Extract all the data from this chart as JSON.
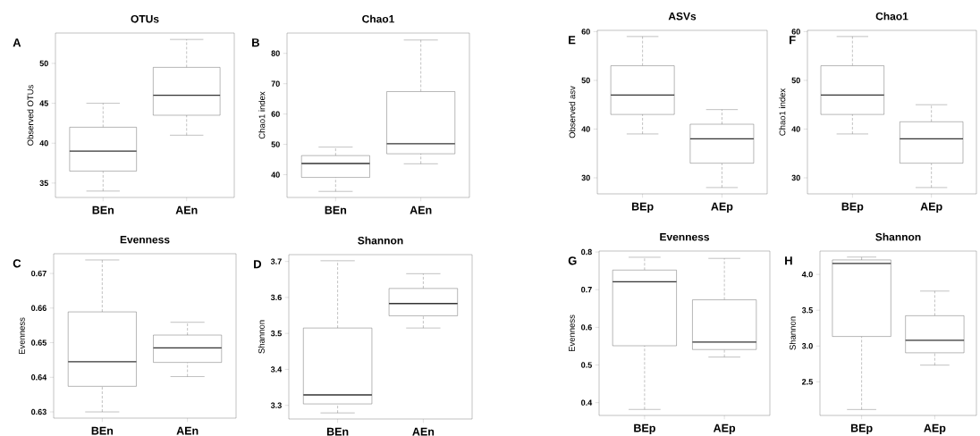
{
  "chart_data": [
    {
      "type": "box",
      "title": "OTUs",
      "ylabel": "Observed OTUs",
      "annotations": [
        "A"
      ],
      "categories": [
        "BEn",
        "AEn"
      ],
      "ylim": [
        33.2,
        53.8
      ],
      "yticks": [
        35,
        40,
        45,
        50
      ],
      "boxes": [
        {
          "low": 34,
          "q1": 36.5,
          "median": 39,
          "q3": 42,
          "high": 45
        },
        {
          "low": 41,
          "q1": 43.5,
          "median": 46,
          "q3": 49.5,
          "high": 53
        }
      ]
    },
    {
      "type": "box",
      "title": "Chao1",
      "ylabel": "Chao1 index",
      "annotations": [
        "B"
      ],
      "categories": [
        "BEn",
        "AEn"
      ],
      "ylim": [
        32.5,
        86.7
      ],
      "yticks": [
        40,
        50,
        60,
        70,
        80
      ],
      "boxes": [
        {
          "low": 34.5,
          "q1": 39.1,
          "median": 43.7,
          "q3": 46.3,
          "high": 49.1
        },
        {
          "low": 43.6,
          "q1": 46.9,
          "median": 50.2,
          "q3": 67.4,
          "high": 84.4
        }
      ]
    },
    {
      "type": "box",
      "title": "Evenness",
      "ylabel": "Evenness",
      "annotations": [
        "C"
      ],
      "categories": [
        "BEn",
        "AEn"
      ],
      "ylim": [
        0.6282,
        0.6757
      ],
      "yticks": [
        0.63,
        0.64,
        0.65,
        0.66,
        0.67
      ],
      "boxes": [
        {
          "low": 0.63,
          "q1": 0.6374,
          "median": 0.6445,
          "q3": 0.6589,
          "high": 0.6739
        },
        {
          "low": 0.6402,
          "q1": 0.6443,
          "median": 0.6485,
          "q3": 0.6522,
          "high": 0.6559
        }
      ]
    },
    {
      "type": "box",
      "title": "Shannon",
      "ylabel": "Shannon",
      "annotations": [
        "D"
      ],
      "categories": [
        "BEn",
        "AEn"
      ],
      "ylim": [
        3.262,
        3.719
      ],
      "yticks": [
        3.3,
        3.4,
        3.5,
        3.6,
        3.7
      ],
      "boxes": [
        {
          "low": 3.279,
          "q1": 3.304,
          "median": 3.329,
          "q3": 3.515,
          "high": 3.702
        },
        {
          "low": 3.515,
          "q1": 3.549,
          "median": 3.583,
          "q3": 3.625,
          "high": 3.666
        }
      ]
    },
    {
      "type": "box",
      "title": "ASVs",
      "ylabel": "Observed asv",
      "annotations": [
        "E"
      ],
      "categories": [
        "BEp",
        "AEp"
      ],
      "ylim": [
        26.7,
        60.26
      ],
      "yticks": [
        30,
        40,
        50,
        60
      ],
      "boxes": [
        {
          "low": 39,
          "q1": 43,
          "median": 47,
          "q3": 53,
          "high": 59
        },
        {
          "low": 28,
          "q1": 33,
          "median": 38,
          "q3": 41,
          "high": 44
        }
      ]
    },
    {
      "type": "box",
      "title": "Chao1",
      "ylabel": "Chao1 index",
      "annotations": [
        "F"
      ],
      "categories": [
        "BEp",
        "AEp"
      ],
      "ylim": [
        26.7,
        60.26
      ],
      "yticks": [
        30,
        40,
        50,
        60
      ],
      "boxes": [
        {
          "low": 39,
          "q1": 43,
          "median": 47,
          "q3": 53,
          "high": 59
        },
        {
          "low": 28,
          "q1": 33,
          "median": 38,
          "q3": 41.5,
          "high": 45
        }
      ]
    },
    {
      "type": "box",
      "title": "Evenness",
      "ylabel": "Evenness",
      "annotations": [
        "G"
      ],
      "categories": [
        "BEp",
        "AEp"
      ],
      "ylim": [
        0.366,
        0.8025
      ],
      "yticks": [
        0.4,
        0.5,
        0.6,
        0.7,
        0.8
      ],
      "boxes": [
        {
          "low": 0.382,
          "q1": 0.551,
          "median": 0.721,
          "q3": 0.752,
          "high": 0.786
        },
        {
          "low": 0.521,
          "q1": 0.541,
          "median": 0.561,
          "q3": 0.673,
          "high": 0.783
        }
      ]
    },
    {
      "type": "box",
      "title": "Shannon",
      "ylabel": "Shannon",
      "annotations": [
        "H"
      ],
      "categories": [
        "BEp",
        "AEp"
      ],
      "ylim": [
        2.03,
        4.326
      ],
      "yticks": [
        2.5,
        {
          "value": 3,
          "label": "3.0"
        },
        3.5,
        {
          "value": 4,
          "label": "4.0"
        }
      ],
      "boxes": [
        {
          "low": 2.113,
          "q1": 3.133,
          "median": 4.154,
          "q3": 4.202,
          "high": 4.242
        },
        {
          "low": 2.733,
          "q1": 2.905,
          "median": 3.08,
          "q3": 3.423,
          "high": 3.767
        }
      ]
    }
  ]
}
